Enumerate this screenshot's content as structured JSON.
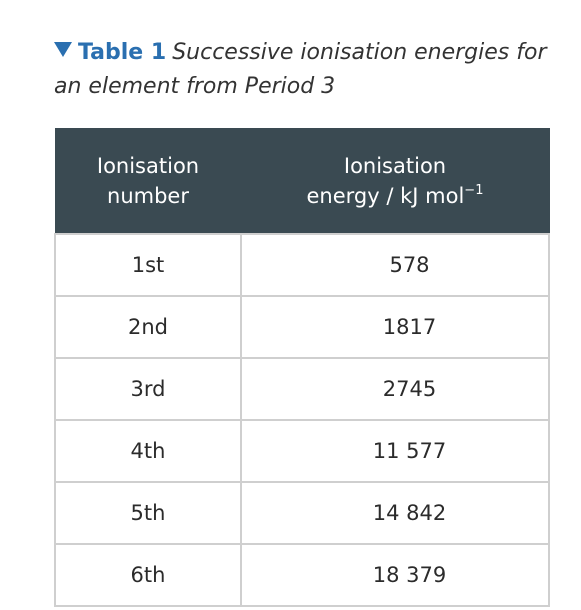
{
  "caption": {
    "label": "Table 1",
    "text": "Successive ionisation energies for an element from Period 3"
  },
  "table": {
    "headers": [
      {
        "line1": "Ionisation",
        "line2": "number",
        "sup": ""
      },
      {
        "line1": "Ionisation",
        "line2": "energy / kJ mol",
        "sup": "−1"
      }
    ],
    "rows": [
      {
        "number": "1st",
        "energy": "578"
      },
      {
        "number": "2nd",
        "energy": "1817"
      },
      {
        "number": "3rd",
        "energy": "2745"
      },
      {
        "number": "4th",
        "energy": "11 577"
      },
      {
        "number": "5th",
        "energy": "14 842"
      },
      {
        "number": "6th",
        "energy": "18 379"
      }
    ]
  },
  "colors": {
    "accent": "#2a6fb0",
    "header_bg": "#3a4a52",
    "border": "#cfcfcf"
  }
}
